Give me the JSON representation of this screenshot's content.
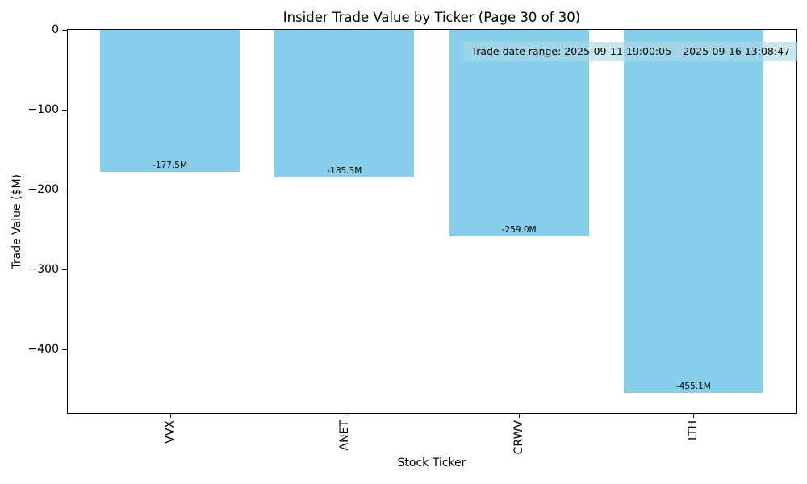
{
  "chart_data": {
    "type": "bar",
    "title": "Insider Trade Value by Ticker (Page 30 of 30)",
    "xlabel": "Stock Ticker",
    "ylabel": "Trade Value ($M)",
    "categories": [
      "VVX",
      "ANET",
      "CRWV",
      "LTH"
    ],
    "values": [
      -177.5,
      -185.3,
      -259.0,
      -455.1
    ],
    "bar_value_labels": [
      "-177.5M",
      "-185.3M",
      "-259.0M",
      "-455.1M"
    ],
    "yticks": [
      0,
      -100,
      -200,
      -300,
      -400
    ],
    "ytick_labels": [
      "0",
      "−100",
      "−200",
      "−300",
      "−400"
    ],
    "ylim": [
      -481,
      0
    ],
    "bar_color": "#87CEEB",
    "bar_width_fraction": 0.8,
    "grid": "off",
    "legend": "none",
    "annotation": {
      "text": "Trade date range: 2025-09-11 19:00:05 – 2025-09-16 13:08:47",
      "position": "top-right",
      "bg_color": "#ADD8E6"
    }
  }
}
